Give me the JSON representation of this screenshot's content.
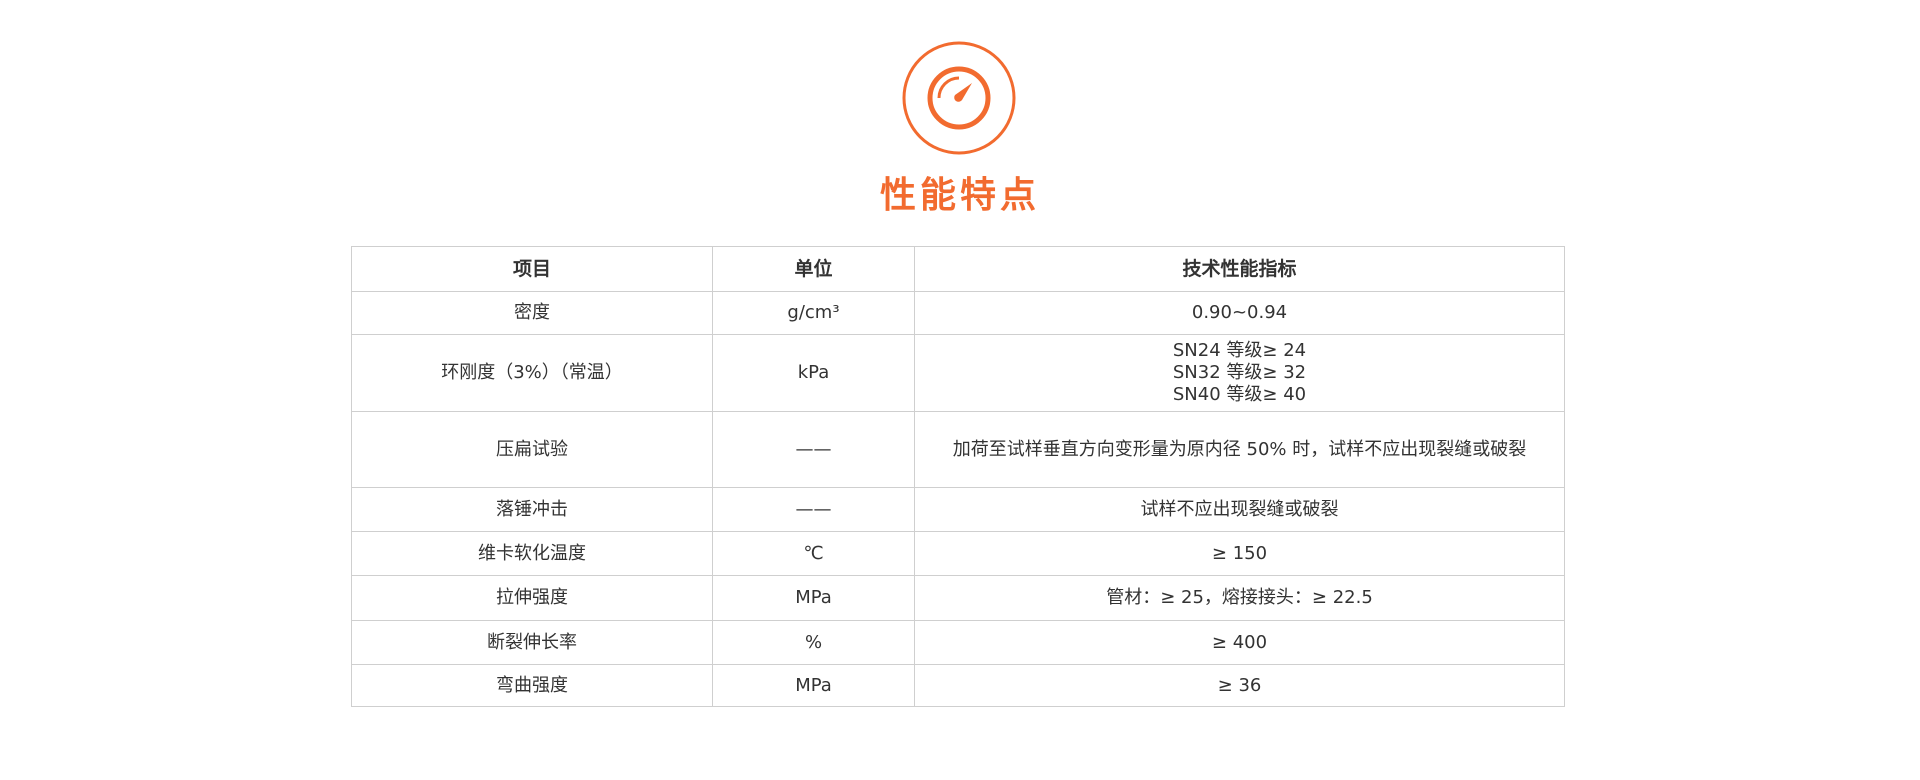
{
  "header": {
    "icon": "speedometer-icon",
    "title": "性能特点",
    "accent_color": "#f26b2f"
  },
  "table": {
    "columns": [
      "项目",
      "单位",
      "技术性能指标"
    ],
    "rows": [
      {
        "item": "密度",
        "unit": "g/cm³",
        "spec": [
          "0.90~0.94"
        ]
      },
      {
        "item": "环刚度（3%）（常温）",
        "unit": "kPa",
        "spec": [
          "SN24 等级≥ 24",
          "SN32 等级≥ 32",
          "SN40 等级≥ 40"
        ]
      },
      {
        "item": "压扁试验",
        "unit": "——",
        "spec": [
          "加荷至试样垂直方向变形量为原内径 50% 时，试样不应出现裂缝或破裂"
        ]
      },
      {
        "item": "落锤冲击",
        "unit": "——",
        "spec": [
          "试样不应出现裂缝或破裂"
        ]
      },
      {
        "item": "维卡软化温度",
        "unit": "℃",
        "spec": [
          "≥ 150"
        ]
      },
      {
        "item": "拉伸强度",
        "unit": "MPa",
        "spec": [
          "管材：≥ 25，熔接接头：≥ 22.5"
        ]
      },
      {
        "item": "断裂伸长率",
        "unit": "%",
        "spec": [
          "≥ 400"
        ]
      },
      {
        "item": "弯曲强度",
        "unit": "MPa",
        "spec": [
          "≥ 36"
        ]
      }
    ]
  }
}
